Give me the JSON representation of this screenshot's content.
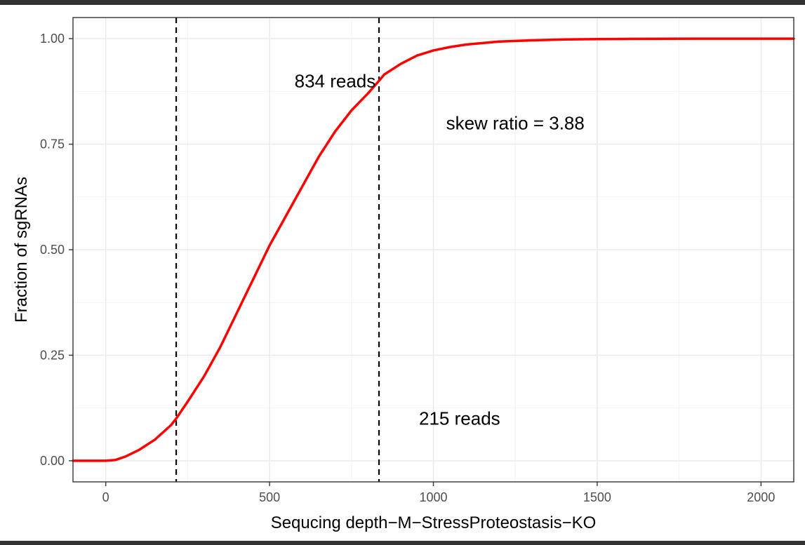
{
  "chart_data": {
    "type": "line",
    "title": "",
    "xlabel": "Sequcing depth−M−StressProteostasis−KO",
    "ylabel": "Fraction of sgRNAs",
    "xlim": [
      -100,
      2100
    ],
    "ylim": [
      -0.05,
      1.05
    ],
    "grid": true,
    "x_ticks": [
      0,
      500,
      1000,
      1500,
      2000
    ],
    "x_tick_labels": [
      "0",
      "500",
      "1000",
      "1500",
      "2000"
    ],
    "y_ticks": [
      0,
      0.25,
      0.5,
      0.75,
      1
    ],
    "y_tick_labels": [
      "0.00",
      "0.25",
      "0.50",
      "0.75",
      "1.00"
    ],
    "series": [
      {
        "color": "#ff0000",
        "x": [
          -100,
          0,
          30,
          60,
          100,
          150,
          200,
          215,
          250,
          300,
          350,
          400,
          450,
          500,
          550,
          600,
          650,
          700,
          750,
          800,
          834,
          850,
          900,
          950,
          1000,
          1050,
          1100,
          1200,
          1300,
          1400,
          1500,
          1600,
          1800,
          2000,
          2100
        ],
        "y": [
          0,
          0,
          0.002,
          0.01,
          0.025,
          0.05,
          0.085,
          0.1,
          0.14,
          0.2,
          0.27,
          0.35,
          0.43,
          0.51,
          0.58,
          0.65,
          0.72,
          0.78,
          0.83,
          0.87,
          0.9,
          0.915,
          0.94,
          0.96,
          0.972,
          0.98,
          0.986,
          0.993,
          0.996,
          0.998,
          0.999,
          0.9995,
          1,
          1,
          1
        ]
      }
    ],
    "vlines": [
      215,
      834
    ],
    "annotations": [
      {
        "text": "834 reads",
        "x": 700,
        "y": 0.9
      },
      {
        "text": "skew ratio = 3.88",
        "x": 1250,
        "y": 0.8
      },
      {
        "text": "215 reads",
        "x": 1080,
        "y": 0.1
      }
    ]
  }
}
